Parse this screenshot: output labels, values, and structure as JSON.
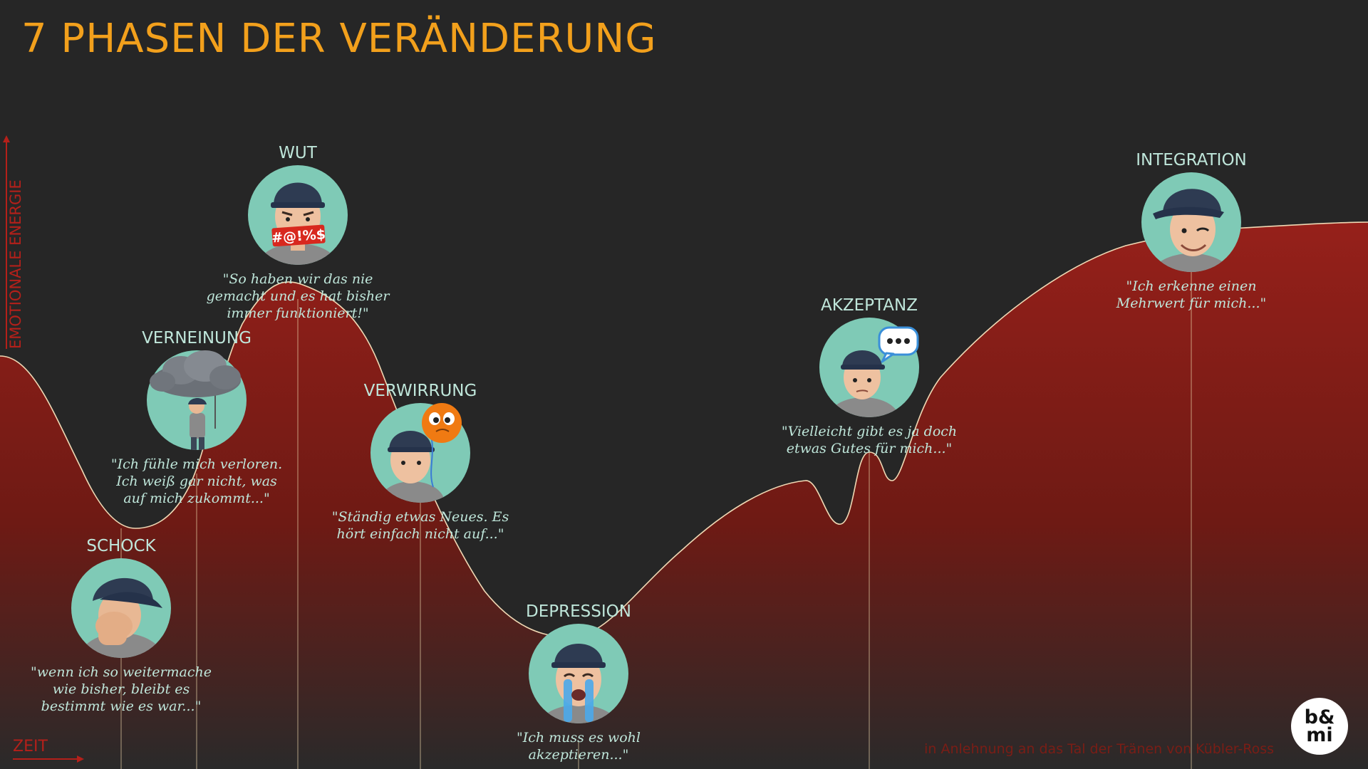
{
  "title": "7 PHASEN DER VERÄNDERUNG",
  "axes": {
    "y_label": "EMOTIONALE ENERGIE",
    "x_label": "ZEIT"
  },
  "source_note": "in Anlehnung an das Tal der Tränen von Kübler-Ross",
  "logo": {
    "line1": "b&",
    "line2": "mi"
  },
  "colors": {
    "title": "#f2a01c",
    "curve_fill_top": "#96201a",
    "curve_fill_bottom": "#2a2a2a",
    "curve_line": "#f0d9b5",
    "avatar_bg": "#7fcab6",
    "text": "#bfe6da",
    "axis": "#b4201a"
  },
  "phases": [
    {
      "name": "SCHOCK",
      "icon": "face-palm-icon",
      "quote": [
        "\"wenn ich so weitermache",
        "wie bisher, bleibt es",
        "bestimmt wie es war...\""
      ]
    },
    {
      "name": "VERNEINUNG",
      "icon": "rain-cloud-icon",
      "quote": [
        "\"Ich fühle mich verloren.",
        "Ich weiß gar nicht, was",
        "auf mich zukommt...\""
      ]
    },
    {
      "name": "WUT",
      "icon": "angry-censored-icon",
      "censor_text": "#@!%$",
      "quote": [
        "\"So haben wir das nie",
        "gemacht und es hat bisher",
        "immer funktioniert!\""
      ]
    },
    {
      "name": "VERWIRRUNG",
      "icon": "balloon-icon",
      "quote": [
        "\"Ständig etwas Neues. Es",
        "hört einfach nicht auf...\""
      ]
    },
    {
      "name": "DEPRESSION",
      "icon": "crying-face-icon",
      "quote": [
        "\"Ich muss es wohl",
        "akzeptieren...\""
      ]
    },
    {
      "name": "AKZEPTANZ",
      "icon": "speech-bubble-icon",
      "quote": [
        "\"Vielleicht gibt es ja doch",
        "etwas Gutes für mich...\""
      ]
    },
    {
      "name": "INTEGRATION",
      "icon": "winking-face-icon",
      "quote": [
        "\"Ich erkenne einen",
        "Mehrwert für mich...\""
      ]
    }
  ]
}
